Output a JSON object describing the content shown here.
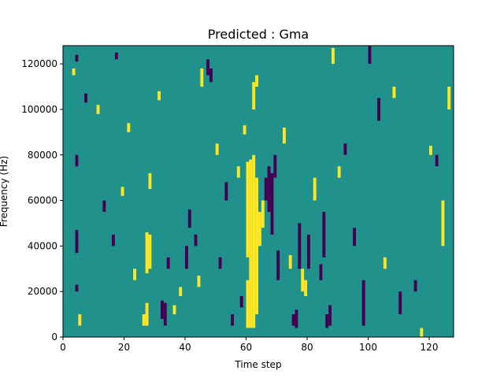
{
  "chart_data": {
    "type": "heatmap",
    "title": "Predicted : Gma",
    "xlabel": "Time step",
    "ylabel": "Frequency (Hz)",
    "xlim": [
      0,
      128
    ],
    "ylim": [
      0,
      128000
    ],
    "x_ticks": [
      0,
      20,
      40,
      60,
      80,
      100,
      120
    ],
    "y_ticks": [
      0,
      20000,
      40000,
      60000,
      80000,
      100000,
      120000
    ],
    "grid": false,
    "legend": "none",
    "colors": {
      "background": "#21918c",
      "high": "#fde725",
      "low": "#440154"
    },
    "time_bins": 128,
    "freq_bins": 128,
    "freq_bin_width_hz": 1000,
    "time_bin_width": 1,
    "cells": [
      {
        "t": 4,
        "f0": 75000,
        "f1": 80000,
        "level": "low"
      },
      {
        "t": 4,
        "f0": 37000,
        "f1": 47000,
        "level": "low"
      },
      {
        "t": 4,
        "f0": 20000,
        "f1": 23000,
        "level": "low"
      },
      {
        "t": 3,
        "f0": 115000,
        "f1": 118000,
        "level": "yellow"
      },
      {
        "t": 4,
        "f0": 121000,
        "f1": 124000,
        "level": "low"
      },
      {
        "t": 5,
        "f0": 5000,
        "f1": 10000,
        "level": "yellow"
      },
      {
        "t": 7,
        "f0": 103000,
        "f1": 107000,
        "level": "low"
      },
      {
        "t": 11,
        "f0": 98000,
        "f1": 102000,
        "level": "yellow"
      },
      {
        "t": 13,
        "f0": 55000,
        "f1": 60000,
        "level": "low"
      },
      {
        "t": 16,
        "f0": 40000,
        "f1": 45000,
        "level": "low"
      },
      {
        "t": 17,
        "f0": 122000,
        "f1": 125000,
        "level": "low"
      },
      {
        "t": 19,
        "f0": 62000,
        "f1": 66000,
        "level": "yellow"
      },
      {
        "t": 21,
        "f0": 90000,
        "f1": 94000,
        "level": "yellow"
      },
      {
        "t": 23,
        "f0": 25000,
        "f1": 30000,
        "level": "yellow"
      },
      {
        "t": 26,
        "f0": 5000,
        "f1": 10000,
        "level": "yellow"
      },
      {
        "t": 27,
        "f0": 5000,
        "f1": 15000,
        "level": "yellow"
      },
      {
        "t": 27,
        "f0": 28000,
        "f1": 46000,
        "level": "yellow"
      },
      {
        "t": 28,
        "f0": 30000,
        "f1": 45000,
        "level": "yellow"
      },
      {
        "t": 28,
        "f0": 65000,
        "f1": 72000,
        "level": "yellow"
      },
      {
        "t": 31,
        "f0": 104000,
        "f1": 108000,
        "level": "yellow"
      },
      {
        "t": 32,
        "f0": 8000,
        "f1": 16000,
        "level": "low"
      },
      {
        "t": 33,
        "f0": 5000,
        "f1": 15000,
        "level": "low"
      },
      {
        "t": 34,
        "f0": 30000,
        "f1": 35000,
        "level": "low"
      },
      {
        "t": 36,
        "f0": 10000,
        "f1": 14000,
        "level": "yellow"
      },
      {
        "t": 38,
        "f0": 18000,
        "f1": 22000,
        "level": "yellow"
      },
      {
        "t": 40,
        "f0": 30000,
        "f1": 40000,
        "level": "low"
      },
      {
        "t": 41,
        "f0": 48000,
        "f1": 56000,
        "level": "low"
      },
      {
        "t": 43,
        "f0": 40000,
        "f1": 45000,
        "level": "low"
      },
      {
        "t": 44,
        "f0": 22000,
        "f1": 27000,
        "level": "yellow"
      },
      {
        "t": 45,
        "f0": 110000,
        "f1": 118000,
        "level": "yellow"
      },
      {
        "t": 47,
        "f0": 115000,
        "f1": 122000,
        "level": "low"
      },
      {
        "t": 48,
        "f0": 112000,
        "f1": 118000,
        "level": "low"
      },
      {
        "t": 50,
        "f0": 80000,
        "f1": 85000,
        "level": "yellow"
      },
      {
        "t": 51,
        "f0": 30000,
        "f1": 35000,
        "level": "low"
      },
      {
        "t": 53,
        "f0": 60000,
        "f1": 68000,
        "level": "low"
      },
      {
        "t": 55,
        "f0": 5000,
        "f1": 10000,
        "level": "low"
      },
      {
        "t": 57,
        "f0": 70000,
        "f1": 75000,
        "level": "yellow"
      },
      {
        "t": 58,
        "f0": 13000,
        "f1": 18000,
        "level": "low"
      },
      {
        "t": 59,
        "f0": 89000,
        "f1": 93000,
        "level": "yellow"
      },
      {
        "t": 60,
        "f0": 4000,
        "f1": 25000,
        "level": "yellow"
      },
      {
        "t": 60,
        "f0": 35000,
        "f1": 77000,
        "level": "yellow"
      },
      {
        "t": 61,
        "f0": 4000,
        "f1": 78000,
        "level": "yellow"
      },
      {
        "t": 62,
        "f0": 4000,
        "f1": 80000,
        "level": "yellow"
      },
      {
        "t": 63,
        "f0": 10000,
        "f1": 70000,
        "level": "yellow"
      },
      {
        "t": 64,
        "f0": 40000,
        "f1": 55000,
        "level": "yellow"
      },
      {
        "t": 65,
        "f0": 48000,
        "f1": 60000,
        "level": "yellow"
      },
      {
        "t": 62,
        "f0": 100000,
        "f1": 112000,
        "level": "yellow"
      },
      {
        "t": 63,
        "f0": 110000,
        "f1": 115000,
        "level": "yellow"
      },
      {
        "t": 66,
        "f0": 60000,
        "f1": 70000,
        "level": "low"
      },
      {
        "t": 67,
        "f0": 55000,
        "f1": 75000,
        "level": "low"
      },
      {
        "t": 68,
        "f0": 45000,
        "f1": 72000,
        "level": "low"
      },
      {
        "t": 69,
        "f0": 70000,
        "f1": 80000,
        "level": "low"
      },
      {
        "t": 70,
        "f0": 25000,
        "f1": 38000,
        "level": "low"
      },
      {
        "t": 72,
        "f0": 85000,
        "f1": 92000,
        "level": "yellow"
      },
      {
        "t": 74,
        "f0": 30000,
        "f1": 36000,
        "level": "yellow"
      },
      {
        "t": 75,
        "f0": 5000,
        "f1": 10000,
        "level": "low"
      },
      {
        "t": 76,
        "f0": 4000,
        "f1": 12000,
        "level": "low"
      },
      {
        "t": 77,
        "f0": 30000,
        "f1": 50000,
        "level": "low"
      },
      {
        "t": 78,
        "f0": 20000,
        "f1": 30000,
        "level": "yellow"
      },
      {
        "t": 79,
        "f0": 18000,
        "f1": 25000,
        "level": "yellow"
      },
      {
        "t": 80,
        "f0": 30000,
        "f1": 45000,
        "level": "low"
      },
      {
        "t": 82,
        "f0": 60000,
        "f1": 70000,
        "level": "yellow"
      },
      {
        "t": 84,
        "f0": 25000,
        "f1": 32000,
        "level": "low"
      },
      {
        "t": 85,
        "f0": 35000,
        "f1": 55000,
        "level": "low"
      },
      {
        "t": 86,
        "f0": 4000,
        "f1": 10000,
        "level": "low"
      },
      {
        "t": 87,
        "f0": 5000,
        "f1": 14000,
        "level": "low"
      },
      {
        "t": 88,
        "f0": 120000,
        "f1": 127000,
        "level": "yellow"
      },
      {
        "t": 90,
        "f0": 70000,
        "f1": 75000,
        "level": "yellow"
      },
      {
        "t": 92,
        "f0": 80000,
        "f1": 85000,
        "level": "low"
      },
      {
        "t": 95,
        "f0": 40000,
        "f1": 48000,
        "level": "low"
      },
      {
        "t": 98,
        "f0": 5000,
        "f1": 25000,
        "level": "low"
      },
      {
        "t": 100,
        "f0": 120000,
        "f1": 128000,
        "level": "low"
      },
      {
        "t": 103,
        "f0": 95000,
        "f1": 105000,
        "level": "low"
      },
      {
        "t": 105,
        "f0": 30000,
        "f1": 35000,
        "level": "yellow"
      },
      {
        "t": 108,
        "f0": 105000,
        "f1": 110000,
        "level": "yellow"
      },
      {
        "t": 110,
        "f0": 10000,
        "f1": 20000,
        "level": "low"
      },
      {
        "t": 115,
        "f0": 20000,
        "f1": 25000,
        "level": "low"
      },
      {
        "t": 117,
        "f0": 0,
        "f1": 4000,
        "level": "yellow"
      },
      {
        "t": 120,
        "f0": 80000,
        "f1": 84000,
        "level": "yellow"
      },
      {
        "t": 122,
        "f0": 75000,
        "f1": 80000,
        "level": "low"
      },
      {
        "t": 124,
        "f0": 40000,
        "f1": 60000,
        "level": "yellow"
      },
      {
        "t": 126,
        "f0": 100000,
        "f1": 110000,
        "level": "yellow"
      }
    ]
  }
}
